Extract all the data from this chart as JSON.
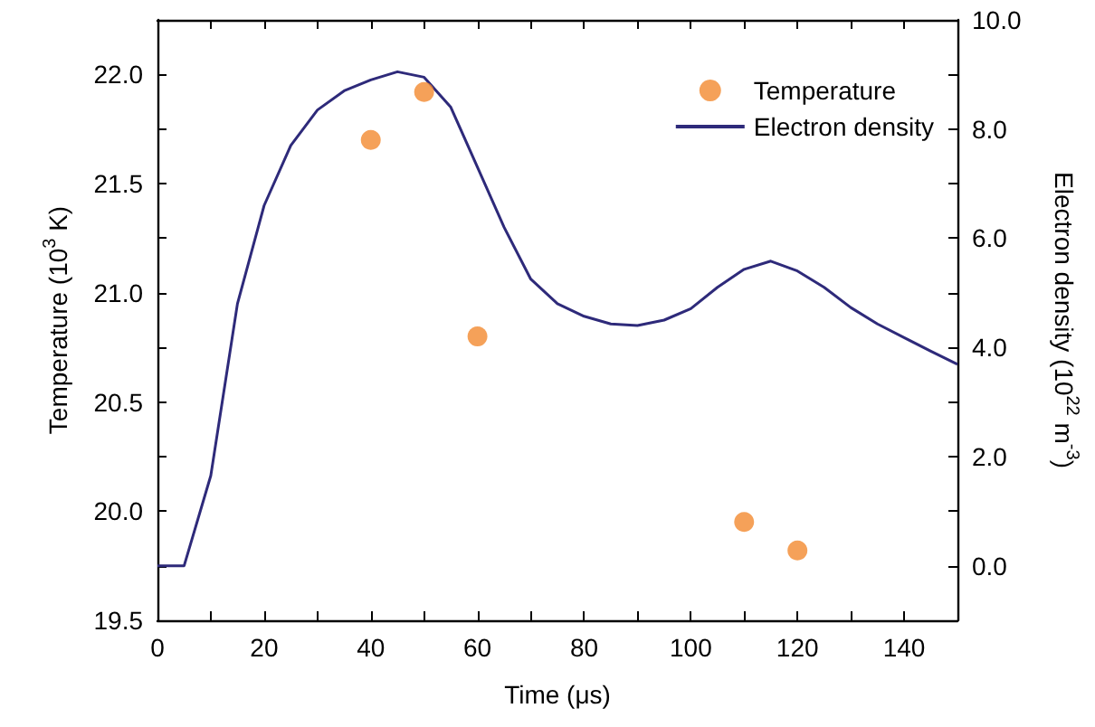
{
  "chart_data": {
    "type": "line",
    "xlabel": "Time (μs)",
    "ylabel": "Temperature (10$^{3}$ K)",
    "y2label": "Electron density (10$^{22}$ m$^{-3}$)",
    "xlim": [
      0,
      150
    ],
    "xticks": [
      0,
      {
        "value": 10,
        "label": null
      },
      20,
      {
        "value": 30,
        "label": null
      },
      40,
      {
        "value": 50,
        "label": null
      },
      60,
      {
        "value": 70,
        "label": null
      },
      80,
      {
        "value": 90,
        "label": null
      },
      100,
      {
        "value": 110,
        "label": null
      },
      120,
      {
        "value": 130,
        "label": null
      },
      140,
      {
        "value": 150,
        "label": null
      }
    ],
    "ylim": [
      19.5,
      22.25
    ],
    "yticks": [
      19.5,
      {
        "value": 19.75,
        "label": null
      },
      {
        "value": 20,
        "label": "20.0"
      },
      {
        "value": 20.25,
        "label": null
      },
      20.5,
      {
        "value": 20.75,
        "label": null
      },
      {
        "value": 21,
        "label": "21.0"
      },
      {
        "value": 21.25,
        "label": null
      },
      21.5,
      {
        "value": 21.75,
        "label": null
      },
      {
        "value": 22,
        "label": "22.0"
      }
    ],
    "y2lim": [
      -1,
      10
    ],
    "y2ticks": [
      {
        "value": 0,
        "label": "0.0"
      },
      {
        "value": 1,
        "label": null
      },
      {
        "value": 2,
        "label": "2.0"
      },
      {
        "value": 3,
        "label": null
      },
      {
        "value": 4,
        "label": "4.0"
      },
      {
        "value": 5,
        "label": null
      },
      {
        "value": 6,
        "label": "6.0"
      },
      {
        "value": 7,
        "label": null
      },
      {
        "value": 8,
        "label": "8.0"
      },
      {
        "value": 9,
        "label": null
      },
      {
        "value": 10,
        "label": "10.0"
      }
    ],
    "grid": false,
    "legend": "top right",
    "series": [
      {
        "name": "Temperature",
        "type": "scatter",
        "marker": "circle",
        "color": "#f28a30",
        "x": [
          40,
          50,
          60,
          110,
          120
        ],
        "values": [
          21.7,
          21.92,
          20.8,
          19.95,
          19.82
        ]
      },
      {
        "name": "Electron density",
        "axis": "y2",
        "marker": "none",
        "line_style": "solid",
        "color": "#2e2a7a",
        "x": [
          0,
          5,
          10,
          15,
          20,
          25,
          30,
          35,
          40,
          45,
          50,
          55,
          60,
          65,
          70,
          75,
          80,
          85,
          90,
          95,
          100,
          105,
          110,
          115,
          120,
          125,
          130,
          135,
          140,
          145,
          150
        ],
        "values": [
          0,
          0,
          1.65,
          4.8,
          6.6,
          7.7,
          8.35,
          8.7,
          8.9,
          9.05,
          8.95,
          8.4,
          7.3,
          6.2,
          5.25,
          4.8,
          4.57,
          4.43,
          4.4,
          4.5,
          4.71,
          5.1,
          5.43,
          5.58,
          5.4,
          5.1,
          4.73,
          4.43,
          4.18,
          3.93,
          3.69
        ]
      }
    ]
  }
}
